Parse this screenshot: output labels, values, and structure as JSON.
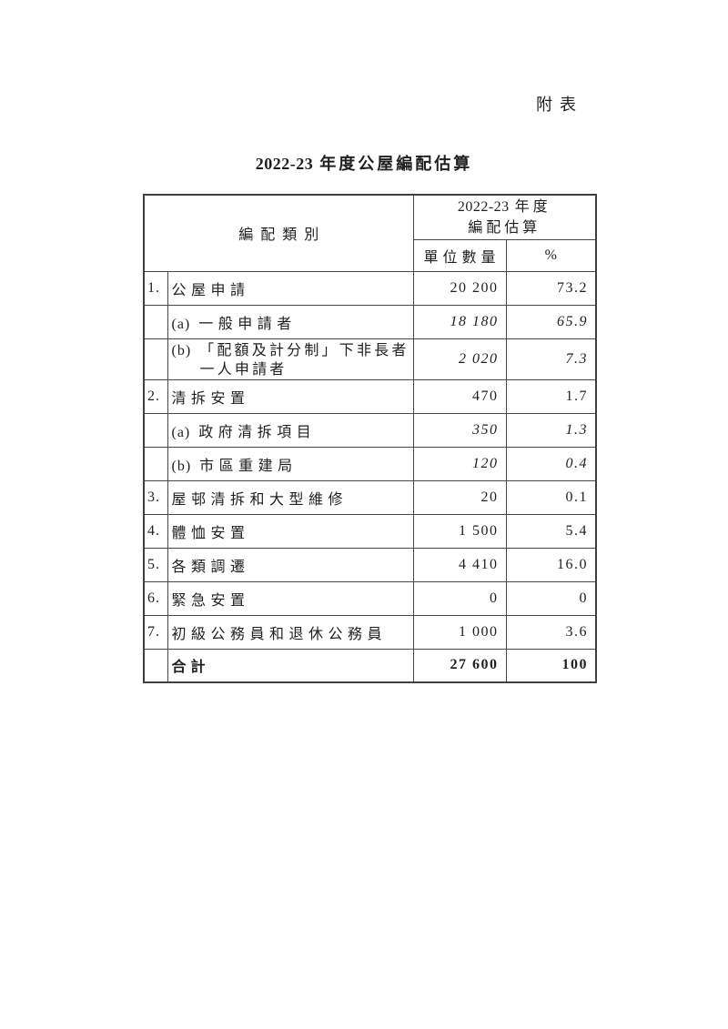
{
  "page": {
    "corner_label": "附表"
  },
  "title": {
    "prefix": "2022-23",
    "cjk": "年度公屋編配估算"
  },
  "table": {
    "header": {
      "category": "編配類別",
      "estimate_year": "2022-23",
      "estimate_year_cjk": "年度",
      "estimate_line2": "編配估算",
      "units": "單位數量",
      "percent": "%"
    },
    "rows": [
      {
        "num": "1.",
        "text": "公屋申請",
        "units": "20 200",
        "pct": "73.2"
      },
      {
        "marker": "(a)",
        "text": "一般申請者",
        "units": "18 180",
        "pct": "65.9"
      },
      {
        "marker": "(b)",
        "text": "「配額及計分制」下非長者",
        "text2": "一人申請者",
        "units": "2 020",
        "pct": "7.3"
      },
      {
        "num": "2.",
        "text": "清拆安置",
        "units": "470",
        "pct": "1.7"
      },
      {
        "marker": "(a)",
        "text": "政府清拆項目",
        "units": "350",
        "pct": "1.3"
      },
      {
        "marker": "(b)",
        "text": "市區重建局",
        "units": "120",
        "pct": "0.4"
      },
      {
        "num": "3.",
        "text": "屋邨清拆和大型維修",
        "units": "20",
        "pct": "0.1"
      },
      {
        "num": "4.",
        "text": "體恤安置",
        "units": "1 500",
        "pct": "5.4"
      },
      {
        "num": "5.",
        "text": "各類調遷",
        "units": "4 410",
        "pct": "16.0"
      },
      {
        "num": "6.",
        "text": "緊急安置",
        "units": "0",
        "pct": "0"
      },
      {
        "num": "7.",
        "text": "初級公務員和退休公務員",
        "units": "1 000",
        "pct": "3.6"
      },
      {
        "text": "合計",
        "units": "27 600",
        "pct": "100"
      }
    ]
  }
}
